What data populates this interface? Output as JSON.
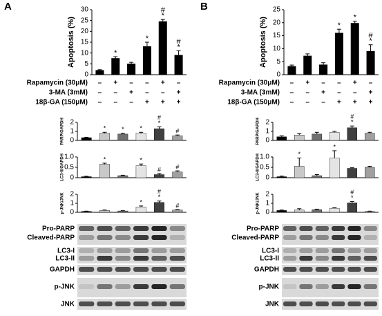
{
  "panels": [
    {
      "label": "A",
      "treatments": [
        {
          "name": "Rapamycin (30μM)",
          "signs": [
            "–",
            "+",
            "–",
            "–",
            "+",
            "–"
          ]
        },
        {
          "name": "3-MA (3mM)",
          "signs": [
            "–",
            "–",
            "+",
            "–",
            "–",
            "+"
          ]
        },
        {
          "name": "18β-GA (150μM)",
          "signs": [
            "–",
            "–",
            "–",
            "+",
            "+",
            "+"
          ]
        }
      ],
      "blots": [
        "Pro-PARP",
        "Cleaved-PARP",
        "LC3-I",
        "LC3-II",
        "GAPDH",
        "p-JNK",
        "JNK"
      ]
    },
    {
      "label": "B",
      "treatments": [
        {
          "name": "Rapamycin (30μM)",
          "signs": [
            "–",
            "+",
            "–",
            "–",
            "+",
            "–"
          ]
        },
        {
          "name": "3-MA (3mM)",
          "signs": [
            "–",
            "–",
            "+",
            "–",
            "–",
            "+"
          ]
        },
        {
          "name": "18β-GA (150μM)",
          "signs": [
            "–",
            "–",
            "–",
            "+",
            "+",
            "+"
          ]
        }
      ],
      "blots": [
        "Pro-PARP",
        "Cleaved-PARP",
        "LC3-I",
        "LC3-II",
        "GAPDH",
        "p-JNK",
        "JNK"
      ]
    }
  ],
  "chart_data": [
    {
      "type": "bar",
      "ylabel": "Apoptosis (%)",
      "categories": [
        null,
        null,
        null,
        null,
        null,
        null
      ],
      "values": [
        2,
        7.5,
        5,
        13,
        24.5,
        9
      ],
      "errors": [
        0.3,
        0.8,
        0.7,
        2,
        1,
        2
      ],
      "colors": [
        "#000000",
        "#000000",
        "#000000",
        "#000000",
        "#000000",
        "#000000"
      ],
      "significance": [
        [],
        [
          "*"
        ],
        [],
        [
          "*"
        ],
        [
          "#",
          "*"
        ],
        [
          "#",
          "*"
        ]
      ],
      "ylim": [
        0,
        30
      ],
      "yticks": [
        0,
        5,
        10,
        15,
        20,
        25,
        30
      ]
    },
    {
      "type": "bar",
      "ylabel": "PARP/GAPDH",
      "categories": [
        null,
        null,
        null,
        null,
        null,
        null
      ],
      "values": [
        0.3,
        0.8,
        0.7,
        0.8,
        1.3,
        0.5
      ],
      "errors": [
        0.05,
        0.1,
        0.1,
        0.1,
        0.2,
        0.1
      ],
      "colors": [
        "#000000",
        "#c8c8c8",
        "#707070",
        "#e4e4e4",
        "#404040",
        "#a0a0a0"
      ],
      "significance": [
        [],
        [
          "*"
        ],
        [
          "*"
        ],
        [
          "*"
        ],
        [
          "#",
          "*"
        ],
        [
          "#"
        ]
      ],
      "ylim": [
        0,
        2
      ],
      "yticks": [
        0,
        1,
        2
      ]
    },
    {
      "type": "bar",
      "ylabel": "LC3-II/GAPDH",
      "categories": [
        null,
        null,
        null,
        null,
        null,
        null
      ],
      "values": [
        0.05,
        0.65,
        0.1,
        0.58,
        0.15,
        0.28
      ],
      "errors": [
        0.02,
        0.05,
        0.02,
        0.08,
        0.05,
        0.05
      ],
      "colors": [
        "#000000",
        "#c8c8c8",
        "#707070",
        "#e4e4e4",
        "#404040",
        "#a0a0a0"
      ],
      "significance": [
        [],
        [
          "*"
        ],
        [],
        [
          "*"
        ],
        [
          "#"
        ],
        [
          "#"
        ]
      ],
      "ylim": [
        0,
        1
      ],
      "yticks": [
        0,
        {
          "value": 0.5,
          "label": "0.5"
        },
        {
          "value": 1,
          "label": "1.0"
        }
      ]
    },
    {
      "type": "bar",
      "ylabel": "p-JNK/JNK",
      "categories": [
        null,
        null,
        null,
        null,
        null,
        null
      ],
      "values": [
        0.1,
        0.2,
        0.15,
        0.6,
        1.1,
        0.25
      ],
      "errors": [
        0.03,
        0.05,
        0.03,
        0.1,
        0.15,
        0.05
      ],
      "colors": [
        "#000000",
        "#c8c8c8",
        "#707070",
        "#e4e4e4",
        "#404040",
        "#a0a0a0"
      ],
      "significance": [
        [],
        [],
        [],
        [
          "*"
        ],
        [
          "#",
          "*"
        ],
        [
          "#"
        ]
      ],
      "ylim": [
        0,
        2
      ],
      "yticks": [
        0,
        1,
        2
      ]
    },
    {
      "type": "bar",
      "ylabel": "Apoptosis (%)",
      "categories": [
        null,
        null,
        null,
        null,
        null,
        null
      ],
      "values": [
        3.2,
        7.2,
        3.8,
        16,
        19.8,
        9
      ],
      "errors": [
        0.5,
        0.8,
        0.8,
        1.5,
        0.8,
        2.5
      ],
      "colors": [
        "#000000",
        "#000000",
        "#000000",
        "#000000",
        "#000000",
        "#000000"
      ],
      "significance": [
        [],
        [],
        [],
        [
          "*"
        ],
        [
          "*"
        ],
        [
          "#",
          "*"
        ]
      ],
      "ylim": [
        0,
        25
      ],
      "yticks": [
        0,
        5,
        10,
        15,
        20,
        25
      ]
    },
    {
      "type": "bar",
      "ylabel": "PARP/GAPDH",
      "categories": [
        null,
        null,
        null,
        null,
        null,
        null
      ],
      "values": [
        0.4,
        0.6,
        0.7,
        0.9,
        1.4,
        0.8
      ],
      "errors": [
        0.1,
        0.15,
        0.2,
        0.1,
        0.2,
        0.1
      ],
      "colors": [
        "#000000",
        "#c8c8c8",
        "#707070",
        "#e4e4e4",
        "#404040",
        "#a0a0a0"
      ],
      "significance": [
        [],
        [],
        [],
        [],
        [
          "#",
          "*"
        ],
        []
      ],
      "ylim": [
        0,
        2
      ],
      "yticks": [
        0,
        1,
        2
      ]
    },
    {
      "type": "bar",
      "ylabel": "LC3-II/GAPDH",
      "categories": [
        null,
        null,
        null,
        null,
        null,
        null
      ],
      "values": [
        0.05,
        0.55,
        0.1,
        0.95,
        0.45,
        0.5
      ],
      "errors": [
        0.03,
        0.4,
        0.05,
        0.35,
        0.03,
        0.05
      ],
      "colors": [
        "#000000",
        "#c8c8c8",
        "#707070",
        "#e4e4e4",
        "#404040",
        "#a0a0a0"
      ],
      "significance": [
        [],
        [
          "*"
        ],
        [],
        [
          "*"
        ],
        [],
        []
      ],
      "ylim": [
        0,
        1
      ],
      "yticks": [
        0,
        {
          "value": 0.5,
          "label": "0.5"
        },
        {
          "value": 1,
          "label": "1.0"
        }
      ]
    },
    {
      "type": "bar",
      "ylabel": "p-JNK/JNK",
      "categories": [
        null,
        null,
        null,
        null,
        null,
        null
      ],
      "values": [
        0.2,
        0.25,
        0.3,
        0.45,
        1.05,
        0.1
      ],
      "errors": [
        0.05,
        0.15,
        0.05,
        0.05,
        0.15,
        0.03
      ],
      "colors": [
        "#000000",
        "#c8c8c8",
        "#707070",
        "#e4e4e4",
        "#404040",
        "#a0a0a0"
      ],
      "significance": [
        [],
        [],
        [],
        [],
        [
          "#",
          "*"
        ],
        []
      ],
      "ylim": [
        0,
        2
      ],
      "yticks": [
        0,
        1,
        2
      ]
    }
  ]
}
